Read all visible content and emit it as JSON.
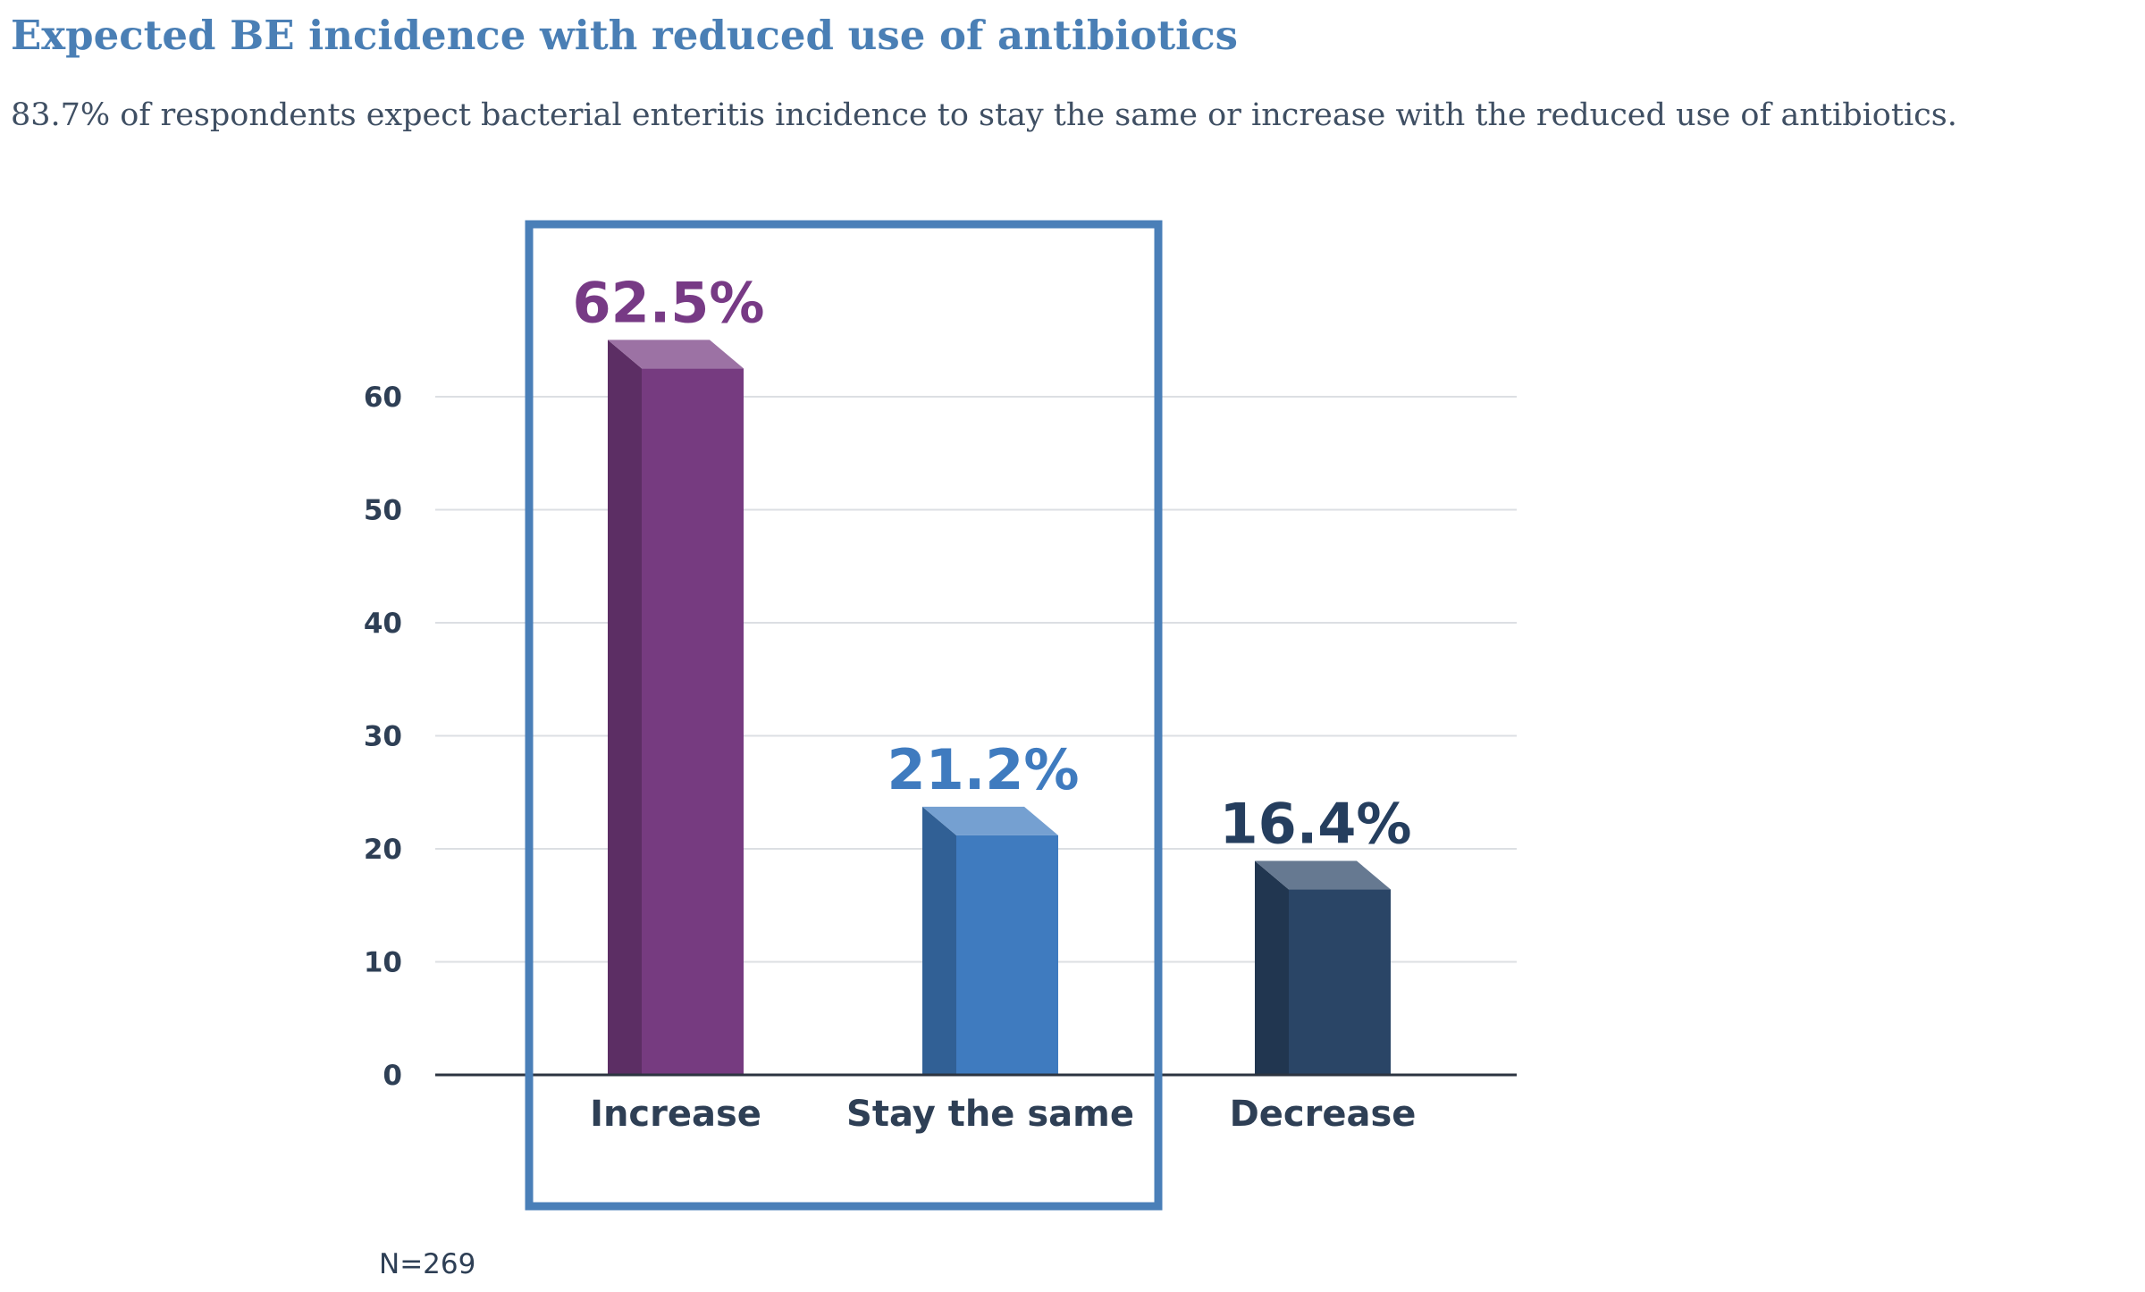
{
  "title": "Expected BE incidence with reduced use of antibiotics",
  "subtitle": "83.7% of respondents expect bacterial enteritis incidence to stay the same or increase with the reduced use of antibiotics.",
  "note": "N=269",
  "chart_data": {
    "type": "bar",
    "title": "",
    "xlabel": "",
    "ylabel": "",
    "categories": [
      "Increase",
      "Stay the same",
      "Decrease"
    ],
    "values": [
      62.5,
      21.2,
      16.4
    ],
    "value_labels": [
      "62.5%",
      "21.2%",
      "16.4%"
    ],
    "bar_colors": [
      "#763b80",
      "#3f7bbf",
      "#2a4566"
    ],
    "label_colors": [
      "#773a85",
      "#3f7bbf",
      "#253e5e"
    ],
    "ylim": [
      0,
      60
    ],
    "yticks": [
      0,
      10,
      20,
      30,
      40,
      50,
      60
    ],
    "grid": true,
    "legend": "none",
    "highlight": [
      "Increase",
      "Stay the same"
    ],
    "highlight_color": "#4a7fb8"
  }
}
